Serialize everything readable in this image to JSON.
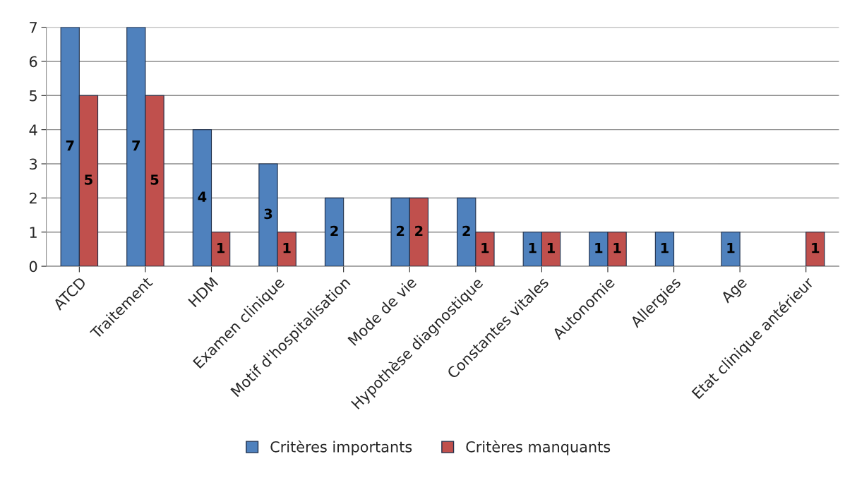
{
  "chart_data": {
    "type": "bar",
    "categories": [
      "ATCD",
      "Traitement",
      "HDM",
      "Examen clinique",
      "Motif d'hospitalisation",
      "Mode de vie",
      "Hypothèse diagnostique",
      "Constantes vitales",
      "Autonomie",
      "Allergies",
      "Age",
      "Etat clinique antérieur"
    ],
    "series": [
      {
        "name": "Critères importants",
        "color": "#4f81bd",
        "values": [
          7,
          7,
          4,
          3,
          2,
          2,
          2,
          1,
          1,
          1,
          1,
          null
        ]
      },
      {
        "name": "Critères manquants",
        "color": "#c0504d",
        "values": [
          5,
          5,
          1,
          1,
          null,
          2,
          1,
          1,
          1,
          null,
          null,
          1
        ]
      }
    ],
    "ylim": [
      0,
      7
    ],
    "yticks": [
      0,
      1,
      2,
      3,
      4,
      5,
      6,
      7
    ],
    "grid": "y",
    "legend": "bottom",
    "data_labels": true
  }
}
